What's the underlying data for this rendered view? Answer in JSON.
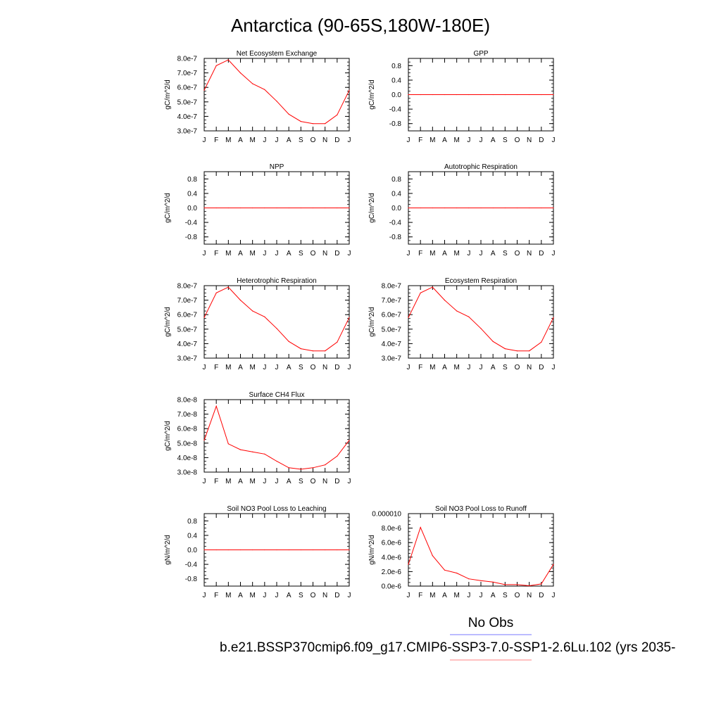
{
  "figure": {
    "title": "Antarctica (90-65S,180W-180E)",
    "legend": {
      "entries": [
        {
          "label": "No Obs",
          "color": "#7a7aff"
        },
        {
          "label": "b.e21.BSSP370cmip6.f09_g17.CMIP6-SSP3-7.0-SSP1-2.6Lu.102 (yrs 2035-",
          "color": "#ff8080"
        }
      ]
    }
  },
  "chart_data": [
    {
      "type": "line",
      "title": "Net Ecosystem Exchange",
      "ylabel": "gC/m^2/d",
      "x": [
        "J",
        "F",
        "M",
        "A",
        "M",
        "J",
        "J",
        "A",
        "S",
        "O",
        "N",
        "D",
        "J"
      ],
      "ylim": [
        3e-07,
        8e-07
      ],
      "yticks": [
        "3.0e-7",
        "4.0e-7",
        "5.0e-7",
        "6.0e-7",
        "7.0e-7",
        "8.0e-7"
      ],
      "grid": false,
      "series": [
        {
          "color": "#ff0000",
          "values": [
            5.8e-07,
            7.5e-07,
            7.9e-07,
            7e-07,
            6.25e-07,
            5.85e-07,
            5.05e-07,
            4.15e-07,
            3.65e-07,
            3.5e-07,
            3.5e-07,
            4.1e-07,
            5.8e-07
          ]
        }
      ]
    },
    {
      "type": "line",
      "title": "GPP",
      "ylabel": "gC/m^2/d",
      "x": [
        "J",
        "F",
        "M",
        "A",
        "M",
        "J",
        "J",
        "A",
        "S",
        "O",
        "N",
        "D",
        "J"
      ],
      "ylim": [
        -1.0,
        1.0
      ],
      "yticks": [
        "-0.8",
        "-0.4",
        "0.0",
        "0.4",
        "0.8"
      ],
      "grid": false,
      "series": [
        {
          "color": "#ff0000",
          "values": [
            0,
            0,
            0,
            0,
            0,
            0,
            0,
            0,
            0,
            0,
            0,
            0,
            0
          ]
        }
      ]
    },
    {
      "type": "line",
      "title": "NPP",
      "ylabel": "gC/m^2/d",
      "x": [
        "J",
        "F",
        "M",
        "A",
        "M",
        "J",
        "J",
        "A",
        "S",
        "O",
        "N",
        "D",
        "J"
      ],
      "ylim": [
        -1.0,
        1.0
      ],
      "yticks": [
        "-0.8",
        "-0.4",
        "0.0",
        "0.4",
        "0.8"
      ],
      "grid": false,
      "series": [
        {
          "color": "#ff0000",
          "values": [
            0,
            0,
            0,
            0,
            0,
            0,
            0,
            0,
            0,
            0,
            0,
            0,
            0
          ]
        }
      ]
    },
    {
      "type": "line",
      "title": "Autotrophic Respiration",
      "ylabel": "gC/m^2/d",
      "x": [
        "J",
        "F",
        "M",
        "A",
        "M",
        "J",
        "J",
        "A",
        "S",
        "O",
        "N",
        "D",
        "J"
      ],
      "ylim": [
        -1.0,
        1.0
      ],
      "yticks": [
        "-0.8",
        "-0.4",
        "0.0",
        "0.4",
        "0.8"
      ],
      "grid": false,
      "series": [
        {
          "color": "#ff0000",
          "values": [
            0,
            0,
            0,
            0,
            0,
            0,
            0,
            0,
            0,
            0,
            0,
            0,
            0
          ]
        }
      ]
    },
    {
      "type": "line",
      "title": "Heterotrophic Respiration",
      "ylabel": "gC/m^2/d",
      "x": [
        "J",
        "F",
        "M",
        "A",
        "M",
        "J",
        "J",
        "A",
        "S",
        "O",
        "N",
        "D",
        "J"
      ],
      "ylim": [
        3e-07,
        8e-07
      ],
      "yticks": [
        "3.0e-7",
        "4.0e-7",
        "5.0e-7",
        "6.0e-7",
        "7.0e-7",
        "8.0e-7"
      ],
      "grid": false,
      "series": [
        {
          "color": "#ff0000",
          "values": [
            5.8e-07,
            7.5e-07,
            7.9e-07,
            7e-07,
            6.25e-07,
            5.85e-07,
            5.05e-07,
            4.15e-07,
            3.65e-07,
            3.5e-07,
            3.5e-07,
            4.1e-07,
            5.8e-07
          ]
        }
      ]
    },
    {
      "type": "line",
      "title": "Ecosystem Respiration",
      "ylabel": "gC/m^2/d",
      "x": [
        "J",
        "F",
        "M",
        "A",
        "M",
        "J",
        "J",
        "A",
        "S",
        "O",
        "N",
        "D",
        "J"
      ],
      "ylim": [
        3e-07,
        8e-07
      ],
      "yticks": [
        "3.0e-7",
        "4.0e-7",
        "5.0e-7",
        "6.0e-7",
        "7.0e-7",
        "8.0e-7"
      ],
      "grid": false,
      "series": [
        {
          "color": "#ff0000",
          "values": [
            5.8e-07,
            7.5e-07,
            7.9e-07,
            7e-07,
            6.25e-07,
            5.85e-07,
            5.05e-07,
            4.15e-07,
            3.65e-07,
            3.5e-07,
            3.5e-07,
            4.1e-07,
            5.8e-07
          ]
        }
      ]
    },
    {
      "type": "line",
      "title": "Surface CH4 Flux",
      "ylabel": "gC/m^2/d",
      "x": [
        "J",
        "F",
        "M",
        "A",
        "M",
        "J",
        "J",
        "A",
        "S",
        "O",
        "N",
        "D",
        "J"
      ],
      "ylim": [
        3e-08,
        8e-08
      ],
      "yticks": [
        "3.0e-8",
        "4.0e-8",
        "5.0e-8",
        "6.0e-8",
        "7.0e-8",
        "8.0e-8"
      ],
      "grid": false,
      "series": [
        {
          "color": "#ff0000",
          "values": [
            5.2e-08,
            7.55e-08,
            4.95e-08,
            4.55e-08,
            4.4e-08,
            4.25e-08,
            3.75e-08,
            3.3e-08,
            3.2e-08,
            3.3e-08,
            3.5e-08,
            4.1e-08,
            5.2e-08
          ]
        }
      ]
    },
    {
      "type": "line",
      "title": "Soil NO3 Pool Loss to Leaching",
      "ylabel": "gN/m^2/d",
      "x": [
        "J",
        "F",
        "M",
        "A",
        "M",
        "J",
        "J",
        "A",
        "S",
        "O",
        "N",
        "D",
        "J"
      ],
      "ylim": [
        -1.0,
        1.0
      ],
      "yticks": [
        "-0.8",
        "-0.4",
        "0.0",
        "0.4",
        "0.8"
      ],
      "grid": false,
      "series": [
        {
          "color": "#ff0000",
          "values": [
            0,
            0,
            0,
            0,
            0,
            0,
            0,
            0,
            0,
            0,
            0,
            0,
            0
          ]
        }
      ]
    },
    {
      "type": "line",
      "title": "Soil NO3 Pool Loss to Runoff",
      "ylabel": "gN/m^2/d",
      "x": [
        "J",
        "F",
        "M",
        "A",
        "M",
        "J",
        "J",
        "A",
        "S",
        "O",
        "N",
        "D",
        "J"
      ],
      "ylim": [
        0.0,
        1e-05
      ],
      "yticks": [
        "0.0e-6",
        "2.0e-6",
        "4.0e-6",
        "6.0e-6",
        "8.0e-6",
        "0.000010"
      ],
      "grid": false,
      "series": [
        {
          "color": "#ff0000",
          "values": [
            3e-06,
            8.1e-06,
            4.2e-06,
            2.2e-06,
            1.8e-06,
            1e-06,
            7.5e-07,
            5.5e-07,
            2e-07,
            2e-07,
            5e-08,
            3e-07,
            3e-06
          ]
        }
      ]
    }
  ]
}
